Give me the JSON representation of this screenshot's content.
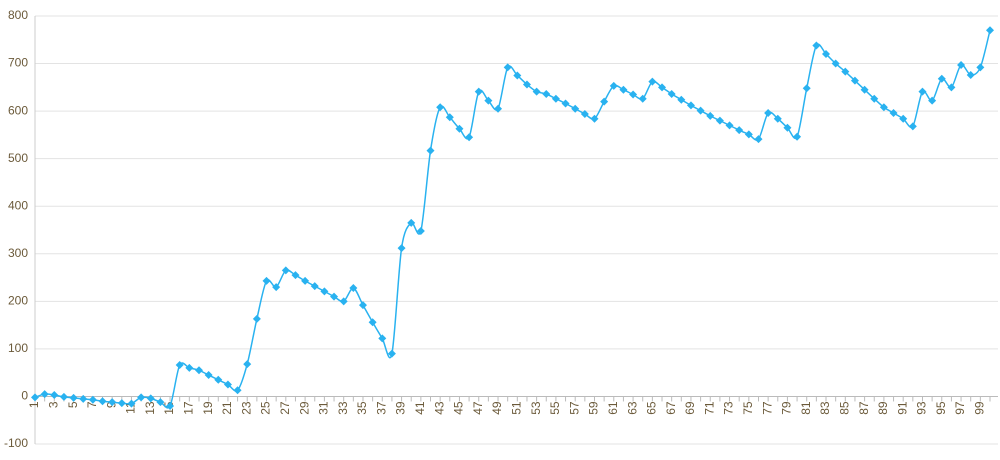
{
  "chart_data": {
    "type": "line",
    "categories": [
      "1",
      null,
      "3",
      null,
      "5",
      null,
      "7",
      null,
      "9",
      null,
      "11",
      null,
      "13",
      null,
      "15",
      null,
      "17",
      null,
      "19",
      null,
      "21",
      null,
      "23",
      null,
      "25",
      null,
      "27",
      null,
      "29",
      null,
      "31",
      null,
      "33",
      null,
      "35",
      null,
      "37",
      null,
      "39",
      null,
      "41",
      null,
      "43",
      null,
      "45",
      null,
      "47",
      null,
      "49",
      null,
      "51",
      null,
      "53",
      null,
      "55",
      null,
      "57",
      null,
      "59",
      null,
      "61",
      null,
      "63",
      null,
      "65",
      null,
      "67",
      null,
      "69",
      null,
      "71",
      null,
      "73",
      null,
      "75",
      null,
      "77",
      null,
      "79",
      null,
      "81",
      null,
      "83",
      null,
      "85",
      null,
      "87",
      null,
      "89",
      null,
      "91",
      null,
      "93",
      null,
      "95",
      null,
      "97",
      null,
      "99",
      null
    ],
    "values": [
      -2,
      5,
      3,
      -1,
      -3,
      -5,
      -7,
      -10,
      -12,
      -14,
      -15,
      -2,
      -4,
      -12,
      -20,
      66,
      60,
      55,
      45,
      35,
      25,
      13,
      68,
      163,
      243,
      230,
      265,
      255,
      243,
      232,
      221,
      210,
      200,
      228,
      192,
      156,
      122,
      90,
      312,
      365,
      348,
      517,
      608,
      587,
      563,
      545,
      641,
      622,
      605,
      692,
      675,
      656,
      641,
      636,
      626,
      616,
      605,
      594,
      584,
      620,
      653,
      645,
      635,
      626,
      662,
      650,
      636,
      624,
      612,
      601,
      590,
      580,
      570,
      560,
      551,
      541,
      596,
      584,
      565,
      546,
      648,
      738,
      720,
      700,
      683,
      664,
      645,
      626,
      608,
      596,
      584,
      568,
      641,
      622,
      668,
      650,
      697,
      676,
      692,
      770
    ],
    "color": "#29b2f0",
    "ylim": [
      -100,
      800
    ],
    "yticks": [
      -100,
      0,
      100,
      200,
      300,
      400,
      500,
      600,
      700,
      800
    ],
    "grid": true
  }
}
